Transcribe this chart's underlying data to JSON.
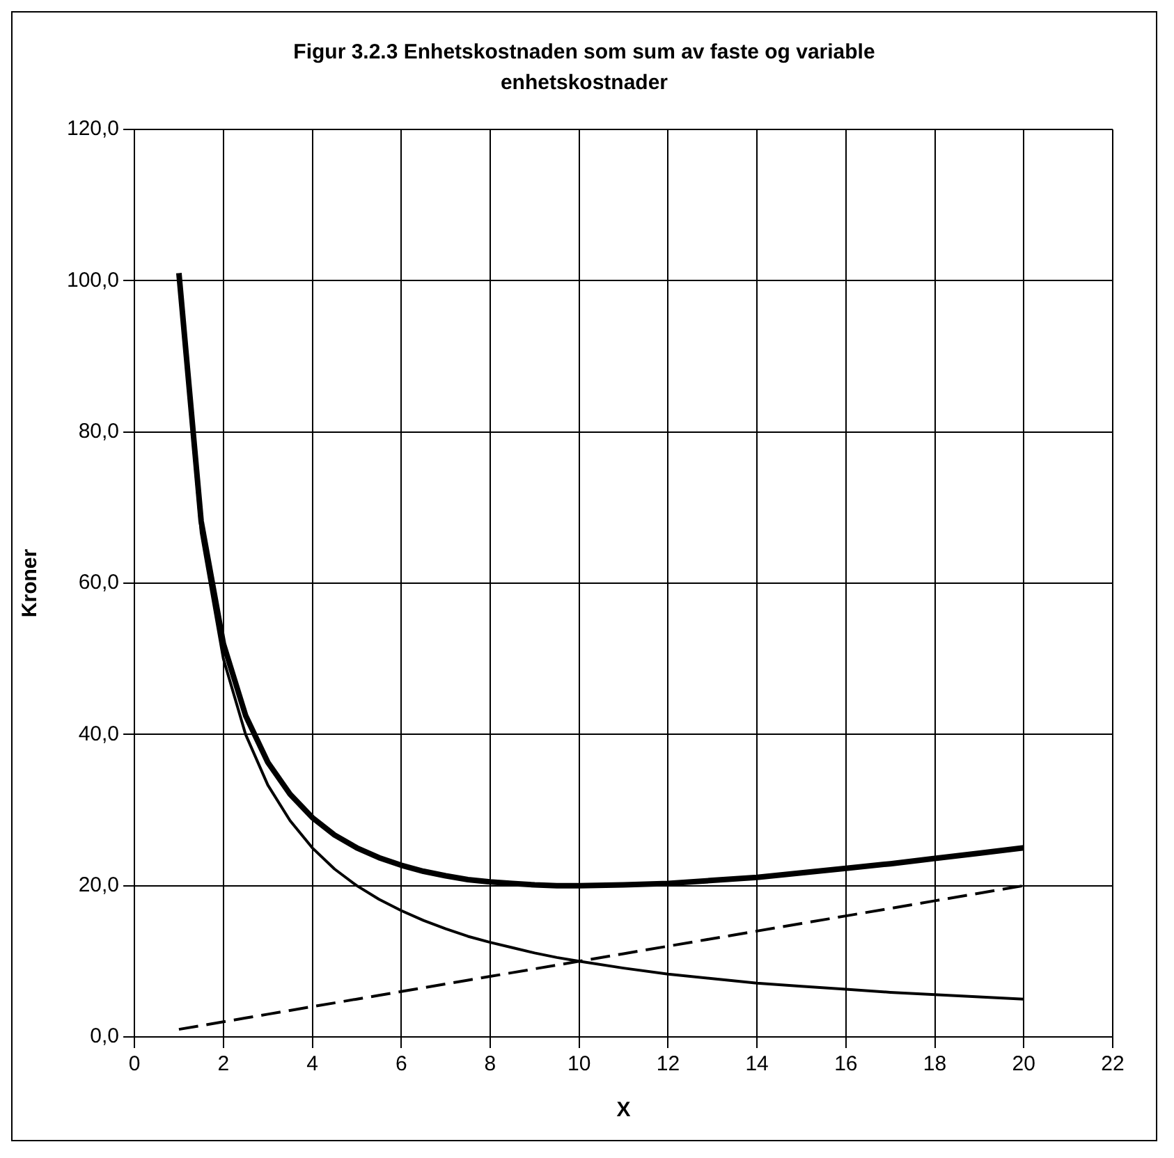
{
  "chart_data": {
    "type": "line",
    "title": "Figur 3.2.3 Enhetskostnaden som sum av faste og variable enhetskostnader",
    "xlabel": "X",
    "ylabel": "Kroner",
    "x": [
      1,
      1.5,
      2,
      2.5,
      3,
      3.5,
      4,
      4.5,
      5,
      5.5,
      6,
      6.5,
      7,
      7.5,
      8,
      8.5,
      9,
      9.5,
      10,
      11,
      12,
      13,
      14,
      15,
      16,
      17,
      18,
      19,
      20
    ],
    "series": [
      {
        "color": "#000000",
        "values": [
          101,
          68.2,
          52,
          42.5,
          36.3,
          32.1,
          29,
          26.7,
          25,
          23.7,
          22.7,
          21.9,
          21.3,
          20.8,
          20.5,
          20.3,
          20.1,
          20,
          20,
          20.1,
          20.3,
          20.7,
          21.1,
          21.7,
          22.3,
          22.9,
          23.6,
          24.3,
          25
        ]
      },
      {
        "color": "#000000",
        "values": [
          100,
          66.7,
          50,
          40,
          33.3,
          28.6,
          25,
          22.2,
          20,
          18.2,
          16.7,
          15.4,
          14.3,
          13.3,
          12.5,
          11.8,
          11.1,
          10.5,
          10,
          9.1,
          8.3,
          7.7,
          7.1,
          6.7,
          6.3,
          5.9,
          5.6,
          5.3,
          5
        ]
      },
      {
        "color": "#000000",
        "line_style": "dashed",
        "values": [
          1,
          1.5,
          2,
          2.5,
          3,
          3.5,
          4,
          4.5,
          5,
          5.5,
          6,
          6.5,
          7,
          7.5,
          8,
          8.5,
          9,
          9.5,
          10,
          11,
          12,
          13,
          14,
          15,
          16,
          17,
          18,
          19,
          20
        ]
      }
    ],
    "xlim": [
      0,
      22
    ],
    "xticks": [
      0,
      2,
      4,
      6,
      8,
      10,
      12,
      14,
      16,
      18,
      20,
      22
    ],
    "ylim": [
      0,
      120
    ],
    "yticks": [
      {
        "value": 0,
        "label": "0,0"
      },
      {
        "value": 20,
        "label": "20,0"
      },
      {
        "value": 40,
        "label": "40,0"
      },
      {
        "value": 60,
        "label": "60,0"
      },
      {
        "value": 80,
        "label": "80,0"
      },
      {
        "value": 100,
        "label": "100,0"
      },
      {
        "value": 120,
        "label": "120,0"
      }
    ],
    "grid": true,
    "legend": false,
    "marker": "none"
  }
}
